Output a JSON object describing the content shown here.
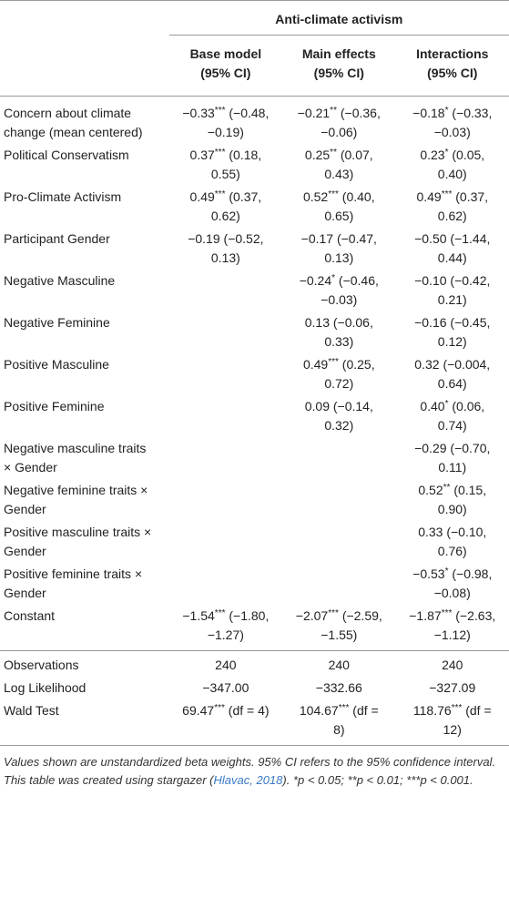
{
  "table": {
    "spanner": "Anti-climate activism",
    "columns": [
      {
        "name": "Base model",
        "sub": "(95% CI)"
      },
      {
        "name": "Main effects",
        "sub": "(95% CI)"
      },
      {
        "name": "Interactions",
        "sub": "(95% CI)"
      }
    ],
    "rows": [
      {
        "label": "Concern about climate change (mean centered)",
        "cells": [
          {
            "est": "−0.33",
            "sig": "***",
            "ci": "(−0.48, −0.19)"
          },
          {
            "est": "−0.21",
            "sig": "**",
            "ci": "(−0.36, −0.06)"
          },
          {
            "est": "−0.18",
            "sig": "*",
            "ci": "(−0.33, −0.03)"
          }
        ]
      },
      {
        "label": "Political Conservatism",
        "cells": [
          {
            "est": "0.37",
            "sig": "***",
            "ci": "(0.18, 0.55)"
          },
          {
            "est": "0.25",
            "sig": "**",
            "ci": "(0.07, 0.43)"
          },
          {
            "est": "0.23",
            "sig": "*",
            "ci": "(0.05, 0.40)"
          }
        ]
      },
      {
        "label": "Pro-Climate Activism",
        "cells": [
          {
            "est": "0.49",
            "sig": "***",
            "ci": "(0.37, 0.62)"
          },
          {
            "est": "0.52",
            "sig": "***",
            "ci": "(0.40, 0.65)"
          },
          {
            "est": "0.49",
            "sig": "***",
            "ci": "(0.37, 0.62)"
          }
        ]
      },
      {
        "label": "Participant Gender",
        "cells": [
          {
            "est": "−0.19",
            "ci": "(−0.52, 0.13)"
          },
          {
            "est": "−0.17",
            "ci": "(−0.47, 0.13)"
          },
          {
            "est": "−0.50",
            "ci": "(−1.44, 0.44)"
          }
        ]
      },
      {
        "label": "Negative Masculine",
        "cells": [
          null,
          {
            "est": "−0.24",
            "sig": "*",
            "ci": "(−0.46, −0.03)"
          },
          {
            "est": "−0.10",
            "ci": "(−0.42, 0.21)"
          }
        ]
      },
      {
        "label": "Negative Feminine",
        "cells": [
          null,
          {
            "est": "0.13",
            "ci": "(−0.06, 0.33)"
          },
          {
            "est": "−0.16",
            "ci": "(−0.45, 0.12)"
          }
        ]
      },
      {
        "label": "Positive Masculine",
        "cells": [
          null,
          {
            "est": "0.49",
            "sig": "***",
            "ci": "(0.25, 0.72)"
          },
          {
            "est": "0.32",
            "ci": "(−0.004, 0.64)"
          }
        ]
      },
      {
        "label": "Positive Feminine",
        "cells": [
          null,
          {
            "est": "0.09",
            "ci": "(−0.14, 0.32)"
          },
          {
            "est": "0.40",
            "sig": "*",
            "ci": "(0.06, 0.74)"
          }
        ]
      },
      {
        "label": "Negative masculine traits × Gender",
        "cells": [
          null,
          null,
          {
            "est": "−0.29",
            "ci": "(−0.70, 0.11)"
          }
        ]
      },
      {
        "label": "Negative feminine traits × Gender",
        "cells": [
          null,
          null,
          {
            "est": "0.52",
            "sig": "**",
            "ci": "(0.15, 0.90)"
          }
        ]
      },
      {
        "label": "Positive masculine traits × Gender",
        "cells": [
          null,
          null,
          {
            "est": "0.33",
            "ci": "(−0.10, 0.76)"
          }
        ]
      },
      {
        "label": "Positive feminine traits × Gender",
        "cells": [
          null,
          null,
          {
            "est": "−0.53",
            "sig": "*",
            "ci": "(−0.98, −0.08)"
          }
        ]
      },
      {
        "label": "Constant",
        "cells": [
          {
            "est": "−1.54",
            "sig": "***",
            "ci": "(−1.80, −1.27)"
          },
          {
            "est": "−2.07",
            "sig": "***",
            "ci": "(−2.59, −1.55)"
          },
          {
            "est": "−1.87",
            "sig": "***",
            "ci": "(−2.63, −1.12)"
          }
        ]
      }
    ],
    "stats": [
      {
        "label": "Observations",
        "cells": [
          {
            "est": "240"
          },
          {
            "est": "240"
          },
          {
            "est": "240"
          }
        ]
      },
      {
        "label": "Log Likelihood",
        "cells": [
          {
            "est": "−347.00"
          },
          {
            "est": "−332.66"
          },
          {
            "est": "−327.09"
          }
        ]
      },
      {
        "label": "Wald Test",
        "cells": [
          {
            "est": "69.47",
            "sig": "***",
            "ci": "(df = 4)"
          },
          {
            "est": "104.67",
            "sig": "***",
            "ci": "(df = 8)"
          },
          {
            "est": "118.76",
            "sig": "***",
            "ci": "(df = 12)"
          }
        ]
      }
    ]
  },
  "note": {
    "before": "Values shown are unstandardized beta weights. 95% CI refers to the 95% confidence interval. This table was created using stargazer (",
    "link": "Hlavac, 2018",
    "after": "). *p < 0.05; **p < 0.01; ***p < 0.001."
  }
}
